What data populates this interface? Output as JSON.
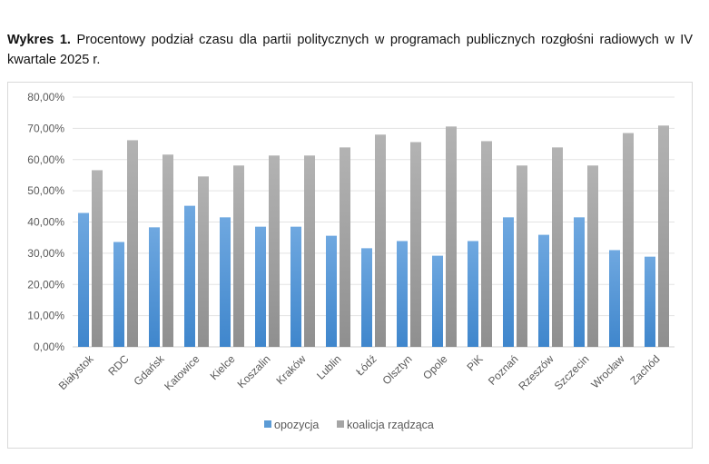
{
  "caption": {
    "label": "Wykres 1.",
    "text": "Procentowy podział czasu dla partii politycznych w programach publicznych rozgłośni radiowych w IV kwartale 2025 r."
  },
  "chart_data": {
    "type": "bar",
    "title": "",
    "xlabel": "",
    "ylabel": "",
    "ylim": [
      0,
      80
    ],
    "yticks": [
      "0,00%",
      "10,00%",
      "20,00%",
      "30,00%",
      "40,00%",
      "50,00%",
      "60,00%",
      "70,00%",
      "80,00%"
    ],
    "grid": true,
    "legend_position": "bottom",
    "categories": [
      "Białystok",
      "RDC",
      "Gdańsk",
      "Katowice",
      "Kielce",
      "Koszalin",
      "Kraków",
      "Lublin",
      "Łódź",
      "Olsztyn",
      "Opole",
      "PiK",
      "Poznań",
      "Rzeszów",
      "Szczecin",
      "Wrocław",
      "Zachód"
    ],
    "series": [
      {
        "name": "opozycja",
        "color": "#5b9bd5",
        "values": [
          42.9,
          33.6,
          38.3,
          45.2,
          41.5,
          38.5,
          38.5,
          35.6,
          31.6,
          33.9,
          29.2,
          33.9,
          41.5,
          35.9,
          41.5,
          31.0,
          28.9
        ]
      },
      {
        "name": "koalicja rządząca",
        "color": "#a5a5a5",
        "values": [
          56.6,
          66.2,
          61.6,
          54.6,
          58.1,
          61.3,
          61.3,
          63.9,
          68.0,
          65.6,
          70.6,
          65.9,
          58.1,
          63.9,
          58.1,
          68.5,
          70.9
        ]
      }
    ]
  }
}
